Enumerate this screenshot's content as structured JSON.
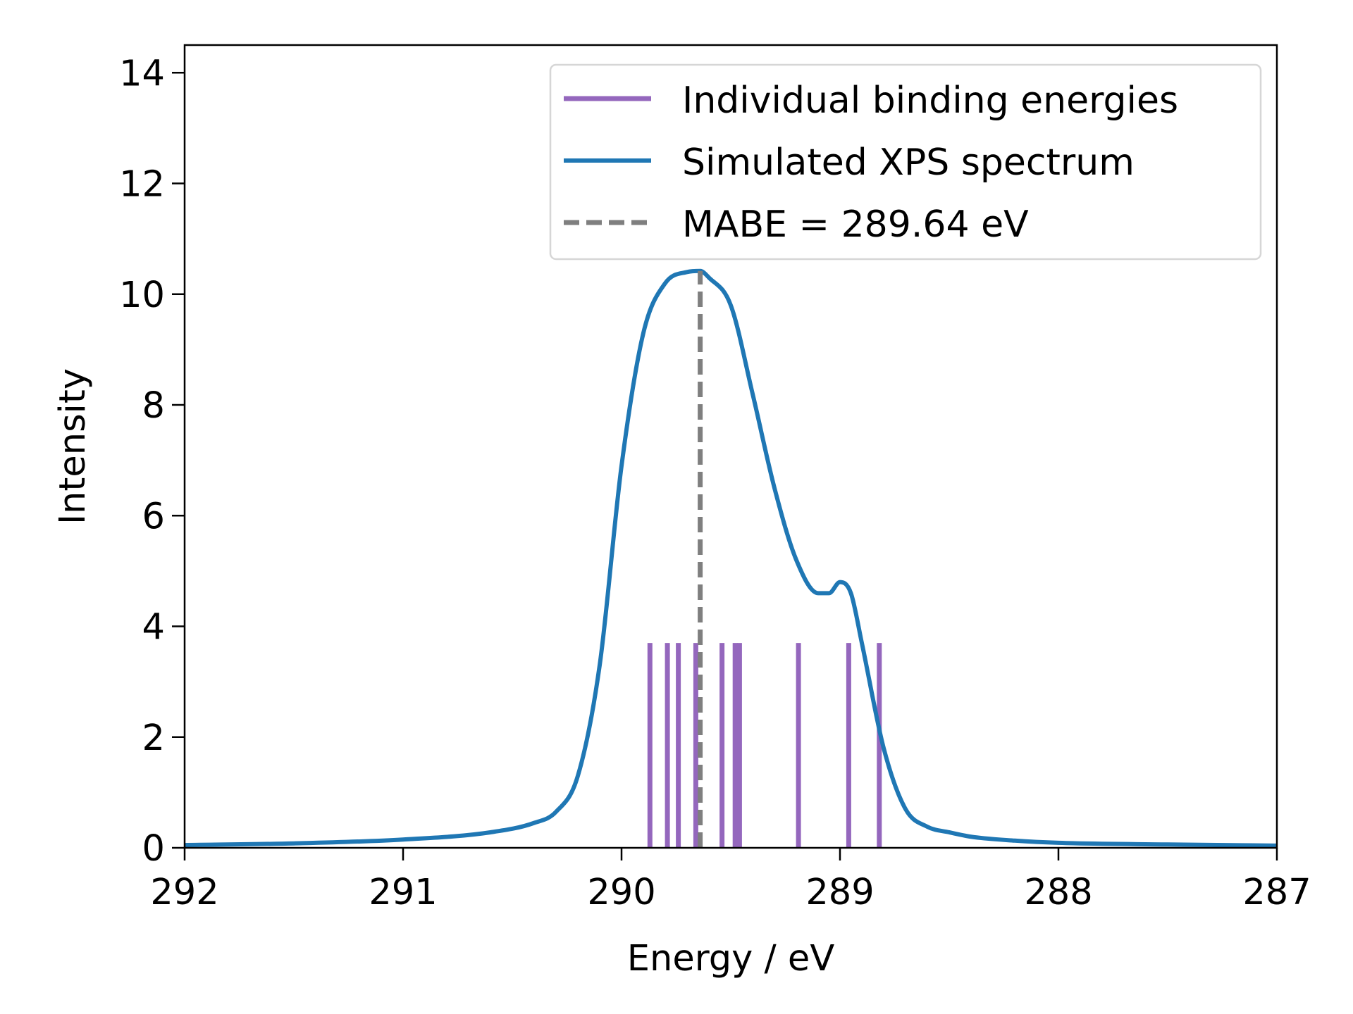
{
  "chart_data": {
    "type": "line",
    "title": "",
    "xlabel": "Energy / eV",
    "ylabel": "Intensity",
    "xlim": [
      292,
      287
    ],
    "x_inverted": true,
    "ylim": [
      0,
      14.5
    ],
    "x_ticks": [
      "292",
      "291",
      "290",
      "289",
      "288",
      "287"
    ],
    "y_ticks": [
      "0",
      "2",
      "4",
      "6",
      "8",
      "10",
      "12",
      "14"
    ],
    "grid": false,
    "legend_position": "top-right",
    "legend": [
      "Individual binding energies",
      "Simulated XPS spectrum",
      "MABE = 289.64 eV"
    ],
    "binding_energies": {
      "name": "Individual binding energies",
      "color": "#9467bd",
      "height": 3.7,
      "x": [
        289.87,
        289.79,
        289.74,
        289.66,
        289.54,
        289.48,
        289.46,
        289.19,
        288.96,
        288.82
      ]
    },
    "spectrum": {
      "name": "Simulated XPS spectrum",
      "color": "#1f77b4",
      "x": [
        292.0,
        291.5,
        291.0,
        290.6,
        290.4,
        290.3,
        290.2,
        290.1,
        290.0,
        289.9,
        289.8,
        289.7,
        289.64,
        289.6,
        289.5,
        289.4,
        289.3,
        289.2,
        289.1,
        289.05,
        289.0,
        288.95,
        288.9,
        288.8,
        288.7,
        288.6,
        288.5,
        288.4,
        288.2,
        288.0,
        287.5,
        287.0
      ],
      "y": [
        0.05,
        0.08,
        0.15,
        0.28,
        0.45,
        0.65,
        1.3,
        3.3,
        6.9,
        9.3,
        10.2,
        10.4,
        10.42,
        10.3,
        9.8,
        8.2,
        6.5,
        5.2,
        4.6,
        4.6,
        4.8,
        4.6,
        3.7,
        1.8,
        0.7,
        0.38,
        0.28,
        0.2,
        0.13,
        0.09,
        0.06,
        0.04
      ]
    },
    "mabe": {
      "name": "MABE = 289.64 eV",
      "color": "#7f7f7f",
      "x": 289.64,
      "y_top": 10.42
    }
  }
}
